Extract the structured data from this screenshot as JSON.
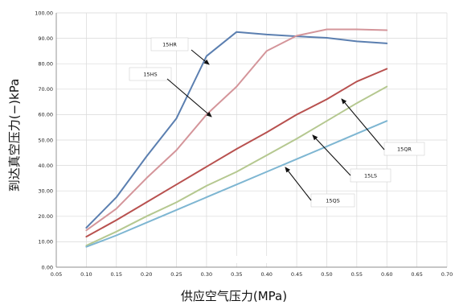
{
  "chart_data": {
    "type": "line",
    "xlabel": "供应空气压力(MPa)",
    "ylabel": "到达真空压力(−)kPa",
    "xlim": [
      0.05,
      0.7
    ],
    "ylim": [
      0,
      100
    ],
    "x_ticks": [
      "0.05",
      "0.10",
      "0.15",
      "0.20",
      "0.25",
      "0.30",
      "0.35",
      "0.40",
      "0.45",
      "0.50",
      "0.55",
      "0.60",
      "0.65",
      "0.70"
    ],
    "y_ticks": [
      "0.00",
      "10.00",
      "20.00",
      "30.00",
      "40.00",
      "50.00",
      "60.00",
      "70.00",
      "80.00",
      "90.00",
      "100.00"
    ],
    "grid": true,
    "series": [
      {
        "name": "15HR",
        "color": "#5b7fb0",
        "x": [
          0.1,
          0.15,
          0.2,
          0.25,
          0.3,
          0.35,
          0.4,
          0.45,
          0.5,
          0.55,
          0.6
        ],
        "y": [
          15.5,
          27.5,
          43.5,
          58.5,
          83.0,
          92.5,
          91.5,
          90.8,
          90.2,
          88.8,
          88.0
        ]
      },
      {
        "name": "15HS",
        "color": "#d4959a",
        "x": [
          0.1,
          0.15,
          0.2,
          0.25,
          0.3,
          0.35,
          0.4,
          0.45,
          0.5,
          0.55,
          0.6
        ],
        "y": [
          14.5,
          23.0,
          35.0,
          46.0,
          60.0,
          71.0,
          85.0,
          91.0,
          93.5,
          93.5,
          93.2
        ]
      },
      {
        "name": "15QR",
        "color": "#b8514f",
        "x": [
          0.1,
          0.15,
          0.2,
          0.25,
          0.3,
          0.35,
          0.4,
          0.45,
          0.5,
          0.55,
          0.6
        ],
        "y": [
          12.0,
          18.5,
          25.5,
          32.5,
          39.5,
          46.5,
          53.0,
          60.0,
          66.0,
          73.0,
          78.0
        ]
      },
      {
        "name": "15LS",
        "color": "#b5c890",
        "x": [
          0.1,
          0.15,
          0.2,
          0.25,
          0.3,
          0.35,
          0.4,
          0.45,
          0.5,
          0.55,
          0.6
        ],
        "y": [
          8.5,
          14.0,
          20.0,
          25.5,
          32.0,
          37.5,
          44.0,
          50.5,
          57.5,
          64.5,
          71.0
        ]
      },
      {
        "name": "15QS",
        "color": "#7eb6d2",
        "x": [
          0.1,
          0.15,
          0.2,
          0.25,
          0.3,
          0.35,
          0.4,
          0.45,
          0.5,
          0.55,
          0.6
        ],
        "y": [
          8.0,
          12.5,
          17.5,
          22.5,
          27.5,
          32.5,
          37.5,
          42.5,
          47.5,
          52.5,
          57.5
        ]
      }
    ],
    "annotations": [
      {
        "text": "15HR",
        "series": "15HR"
      },
      {
        "text": "15HS",
        "series": "15HS"
      },
      {
        "text": "15QR",
        "series": "15QR"
      },
      {
        "text": "15LS",
        "series": "15LS"
      },
      {
        "text": "15QS",
        "series": "15QS"
      }
    ]
  }
}
